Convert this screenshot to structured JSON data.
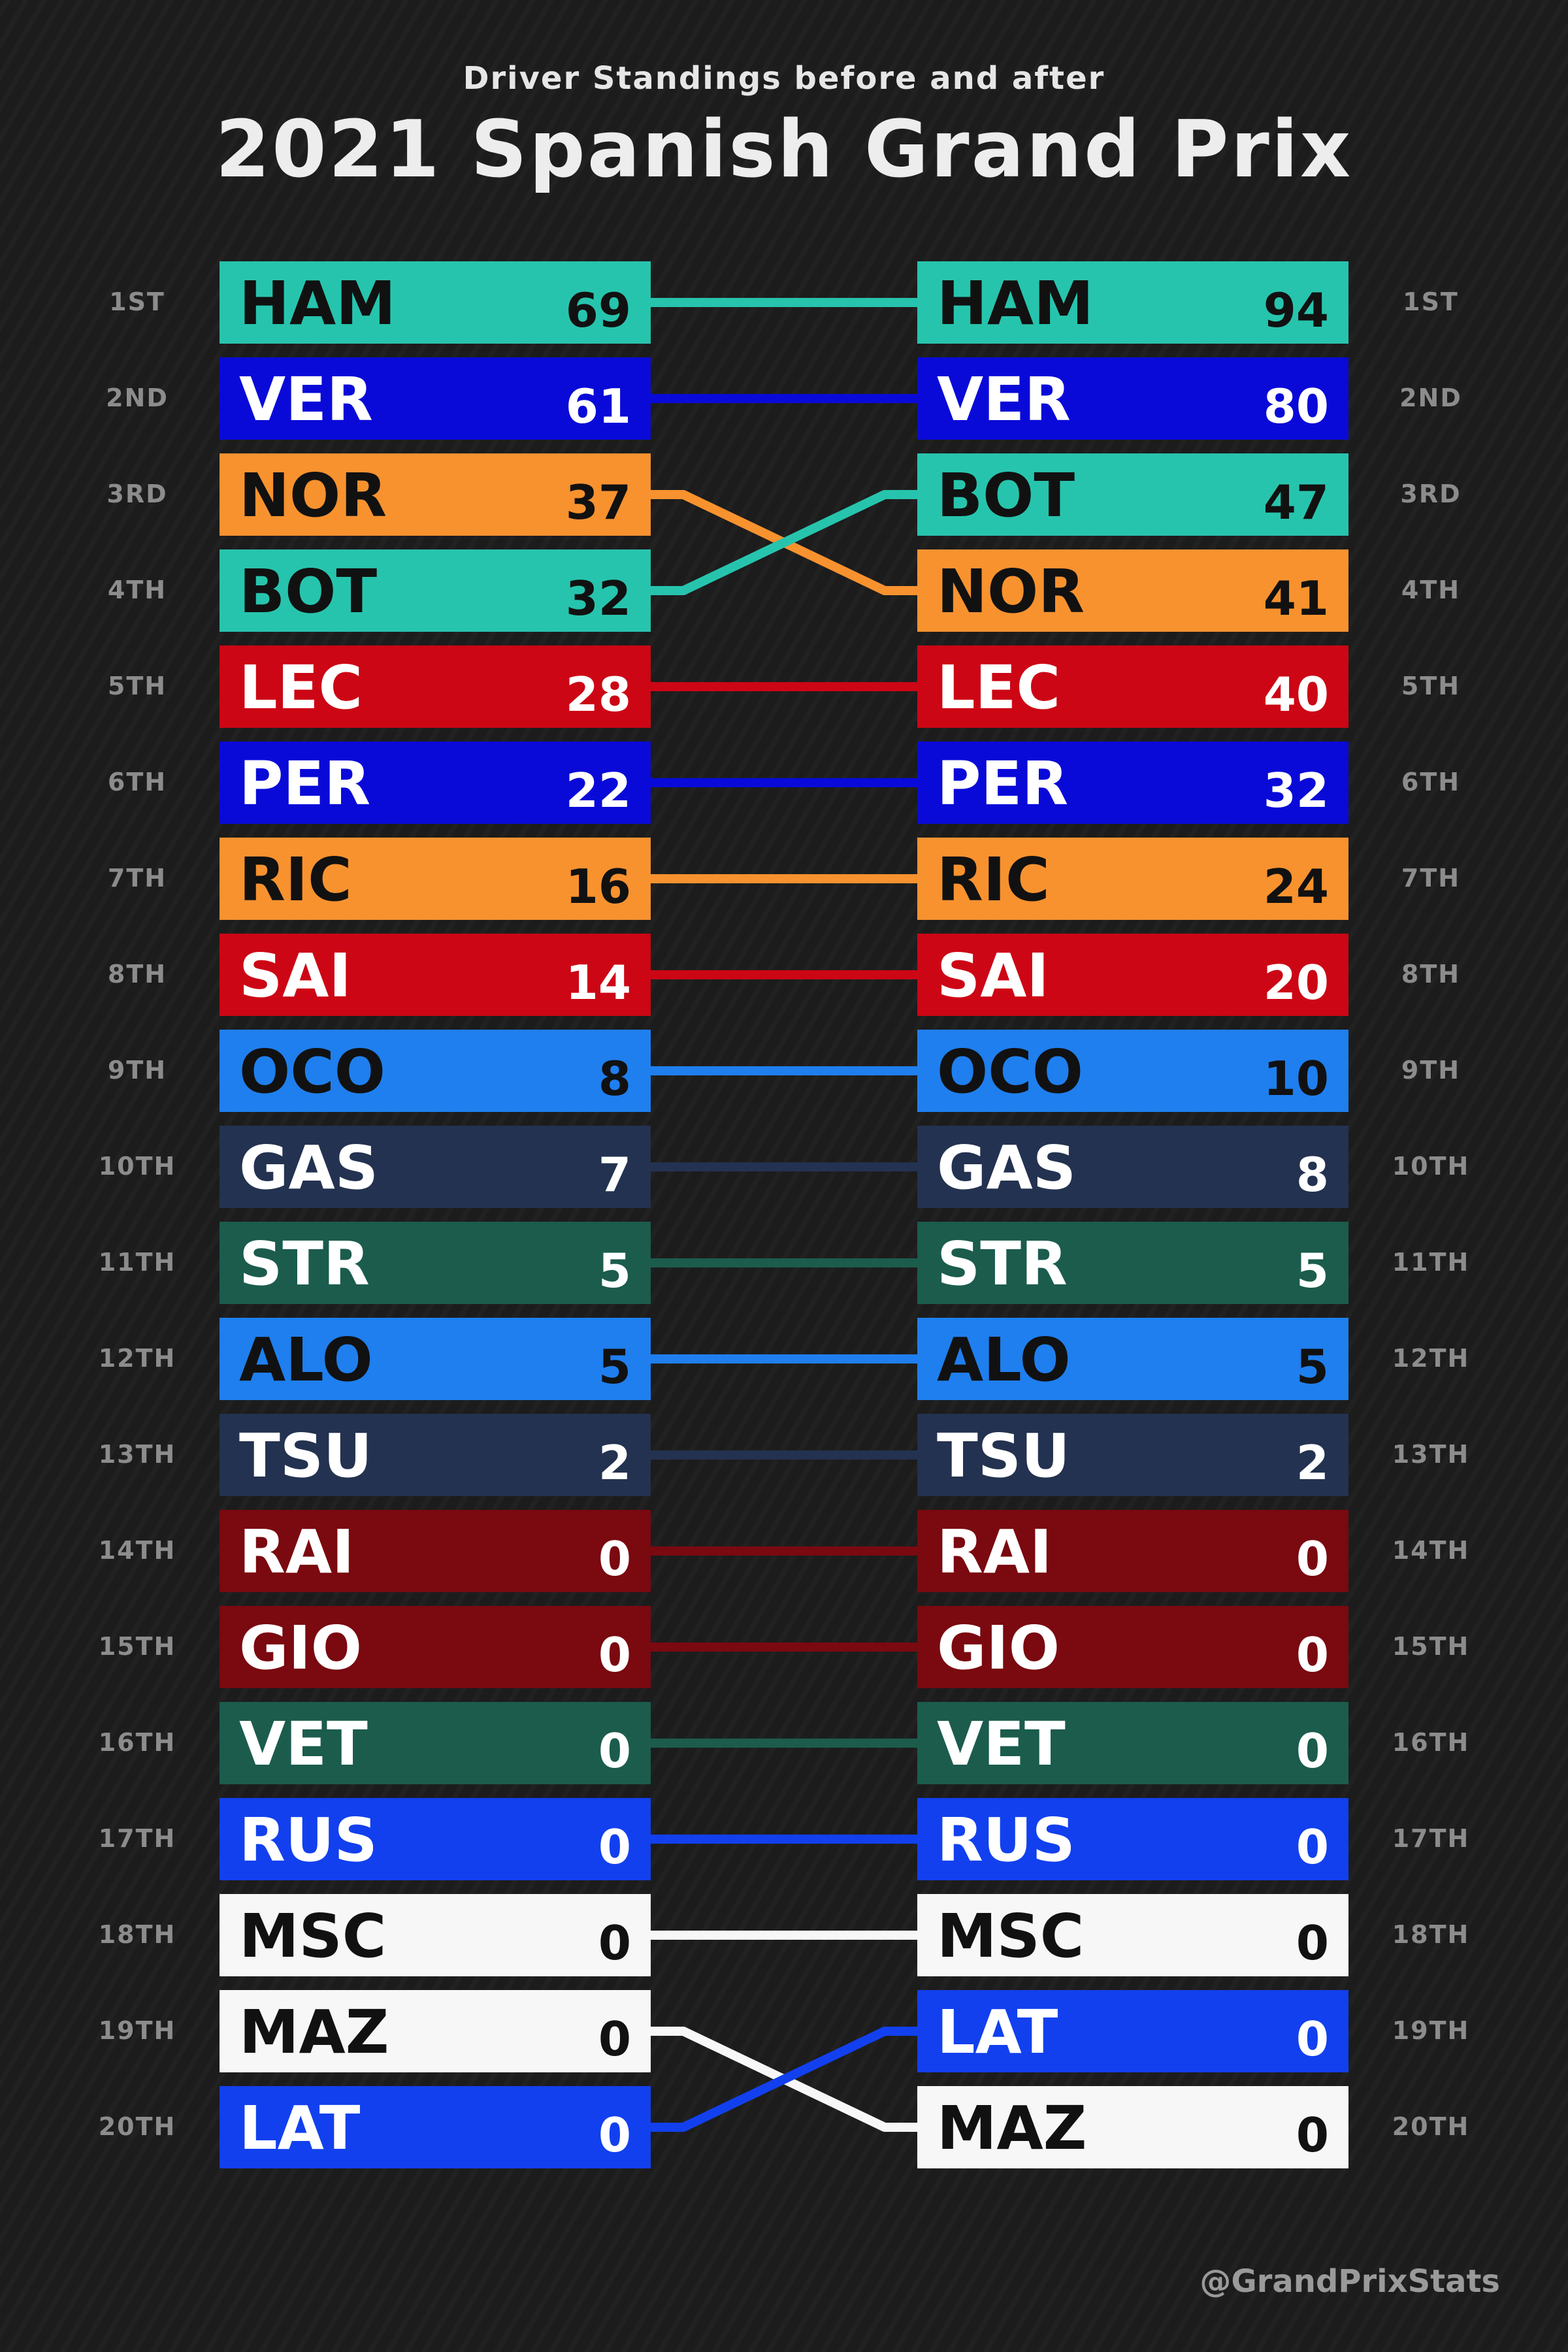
{
  "header": {
    "subtitle": "Driver Standings before and after",
    "title": "2021 Spanish Grand Prix"
  },
  "credit": "@GrandPrixStats",
  "chart_data": {
    "type": "table",
    "title": "2021 Spanish Grand Prix",
    "subtitle": "Driver Standings before and after",
    "positions": [
      "1ST",
      "2ND",
      "3RD",
      "4TH",
      "5TH",
      "6TH",
      "7TH",
      "8TH",
      "9TH",
      "10TH",
      "11TH",
      "12TH",
      "13TH",
      "14TH",
      "15TH",
      "16TH",
      "17TH",
      "18TH",
      "19TH",
      "20TH"
    ],
    "before": [
      {
        "driver": "HAM",
        "points": 69
      },
      {
        "driver": "VER",
        "points": 61
      },
      {
        "driver": "NOR",
        "points": 37
      },
      {
        "driver": "BOT",
        "points": 32
      },
      {
        "driver": "LEC",
        "points": 28
      },
      {
        "driver": "PER",
        "points": 22
      },
      {
        "driver": "RIC",
        "points": 16
      },
      {
        "driver": "SAI",
        "points": 14
      },
      {
        "driver": "OCO",
        "points": 8
      },
      {
        "driver": "GAS",
        "points": 7
      },
      {
        "driver": "STR",
        "points": 5
      },
      {
        "driver": "ALO",
        "points": 5
      },
      {
        "driver": "TSU",
        "points": 2
      },
      {
        "driver": "RAI",
        "points": 0
      },
      {
        "driver": "GIO",
        "points": 0
      },
      {
        "driver": "VET",
        "points": 0
      },
      {
        "driver": "RUS",
        "points": 0
      },
      {
        "driver": "MSC",
        "points": 0
      },
      {
        "driver": "MAZ",
        "points": 0
      },
      {
        "driver": "LAT",
        "points": 0
      }
    ],
    "after": [
      {
        "driver": "HAM",
        "points": 94
      },
      {
        "driver": "VER",
        "points": 80
      },
      {
        "driver": "BOT",
        "points": 47
      },
      {
        "driver": "NOR",
        "points": 41
      },
      {
        "driver": "LEC",
        "points": 40
      },
      {
        "driver": "PER",
        "points": 32
      },
      {
        "driver": "RIC",
        "points": 24
      },
      {
        "driver": "SAI",
        "points": 20
      },
      {
        "driver": "OCO",
        "points": 10
      },
      {
        "driver": "GAS",
        "points": 8
      },
      {
        "driver": "STR",
        "points": 5
      },
      {
        "driver": "ALO",
        "points": 5
      },
      {
        "driver": "TSU",
        "points": 2
      },
      {
        "driver": "RAI",
        "points": 0
      },
      {
        "driver": "GIO",
        "points": 0
      },
      {
        "driver": "VET",
        "points": 0
      },
      {
        "driver": "RUS",
        "points": 0
      },
      {
        "driver": "MSC",
        "points": 0
      },
      {
        "driver": "LAT",
        "points": 0
      },
      {
        "driver": "MAZ",
        "points": 0
      }
    ],
    "team_colors": {
      "HAM": {
        "bg": "#27c4ad",
        "fg": "#111111"
      },
      "BOT": {
        "bg": "#27c4ad",
        "fg": "#111111"
      },
      "VER": {
        "bg": "#0a0ad8",
        "fg": "#ffffff"
      },
      "PER": {
        "bg": "#0a0ad8",
        "fg": "#ffffff"
      },
      "NOR": {
        "bg": "#f7922f",
        "fg": "#111111"
      },
      "RIC": {
        "bg": "#f7922f",
        "fg": "#111111"
      },
      "LEC": {
        "bg": "#cc0615",
        "fg": "#ffffff"
      },
      "SAI": {
        "bg": "#cc0615",
        "fg": "#ffffff"
      },
      "OCO": {
        "bg": "#1f7fee",
        "fg": "#111111"
      },
      "ALO": {
        "bg": "#1f7fee",
        "fg": "#111111"
      },
      "GAS": {
        "bg": "#233250",
        "fg": "#ffffff"
      },
      "TSU": {
        "bg": "#233250",
        "fg": "#ffffff"
      },
      "STR": {
        "bg": "#1b5c4d",
        "fg": "#ffffff"
      },
      "VET": {
        "bg": "#1b5c4d",
        "fg": "#ffffff"
      },
      "RAI": {
        "bg": "#7a0910",
        "fg": "#ffffff"
      },
      "GIO": {
        "bg": "#7a0910",
        "fg": "#ffffff"
      },
      "RUS": {
        "bg": "#1240ee",
        "fg": "#ffffff"
      },
      "LAT": {
        "bg": "#1240ee",
        "fg": "#ffffff"
      },
      "MSC": {
        "bg": "#f7f7f7",
        "fg": "#111111"
      },
      "MAZ": {
        "bg": "#f7f7f7",
        "fg": "#111111"
      }
    }
  }
}
